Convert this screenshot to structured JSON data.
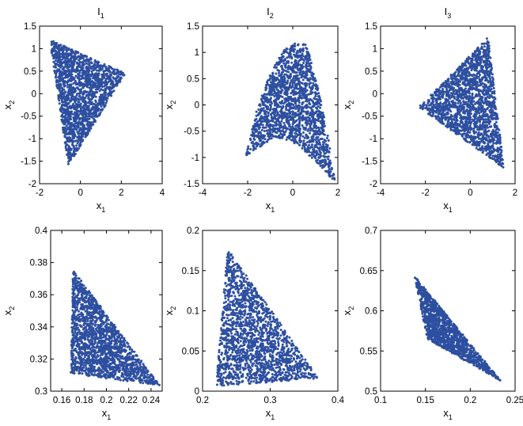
{
  "chart_data": [
    {
      "type": "scatter",
      "title": "I",
      "title_sub": "1",
      "xlabel": "x",
      "xlabel_sub": "1",
      "ylabel": "x",
      "ylabel_sub": "2",
      "xlim": [
        -2,
        4
      ],
      "ylim": [
        -2,
        1.5
      ],
      "xticks": [
        -2,
        0,
        2,
        4
      ],
      "xtick_labels": [
        "-2",
        "0",
        "2",
        "4"
      ],
      "yticks": [
        -2,
        -1.5,
        -1,
        -0.5,
        0,
        0.5,
        1,
        1.5
      ],
      "ytick_labels": [
        "-2",
        "-1.5",
        "-1",
        "-0.5",
        "0",
        "0.5",
        "1",
        "1.5"
      ],
      "region_vertices": [
        [
          -1.5,
          1.2
        ],
        [
          2.2,
          0.45
        ],
        [
          -0.6,
          -1.6
        ]
      ],
      "n_points": 1800
    },
    {
      "type": "scatter",
      "title": "I",
      "title_sub": "2",
      "xlabel": "x",
      "xlabel_sub": "1",
      "ylabel": "x",
      "ylabel_sub": "2",
      "xlim": [
        -4,
        2
      ],
      "ylim": [
        -1.5,
        1.5
      ],
      "xticks": [
        -4,
        -2,
        0,
        2
      ],
      "xtick_labels": [
        "-4",
        "-2",
        "0",
        "2"
      ],
      "yticks": [
        -1.5,
        -1,
        -0.5,
        0,
        0.5,
        1,
        1.5
      ],
      "ytick_labels": [
        "-1.5",
        "-1",
        "-0.5",
        "0",
        "0.5",
        "1",
        "1.5"
      ],
      "region_vertices": [
        [
          -2.1,
          -1.0
        ],
        [
          -1.6,
          -0.1
        ],
        [
          -1.0,
          0.6
        ],
        [
          -0.4,
          1.05
        ],
        [
          0.2,
          1.2
        ],
        [
          0.6,
          1.15
        ],
        [
          0.9,
          0.7
        ],
        [
          1.3,
          0.0
        ],
        [
          1.6,
          -0.7
        ],
        [
          1.9,
          -1.5
        ],
        [
          1.2,
          -1.15
        ],
        [
          0.2,
          -0.75
        ],
        [
          -0.8,
          -0.6
        ]
      ],
      "n_points": 1800
    },
    {
      "type": "scatter",
      "title": "I",
      "title_sub": "3",
      "xlabel": "x",
      "xlabel_sub": "1",
      "ylabel": "x",
      "ylabel_sub": "2",
      "xlim": [
        -4,
        2
      ],
      "ylim": [
        -2,
        1.5
      ],
      "xticks": [
        -4,
        -2,
        0,
        2
      ],
      "xtick_labels": [
        "-4",
        "-2",
        "0",
        "2"
      ],
      "yticks": [
        -2,
        -1.5,
        -1,
        -0.5,
        0,
        0.5,
        1,
        1.5
      ],
      "ytick_labels": [
        "-2",
        "-1.5",
        "-1",
        "-0.5",
        "0",
        "0.5",
        "1",
        "1.5"
      ],
      "region_vertices": [
        [
          -2.3,
          -0.3
        ],
        [
          0.8,
          1.25
        ],
        [
          1.5,
          -1.65
        ]
      ],
      "n_points": 1800
    },
    {
      "type": "scatter",
      "title": "",
      "title_sub": "",
      "xlabel": "x",
      "xlabel_sub": "1",
      "ylabel": "x",
      "ylabel_sub": "2",
      "xlim": [
        0.15,
        0.25
      ],
      "ylim": [
        0.3,
        0.4
      ],
      "xticks": [
        0.16,
        0.18,
        0.2,
        0.22,
        0.24
      ],
      "xtick_labels": [
        "0.16",
        "0.18",
        "0.2",
        "0.22",
        "0.24"
      ],
      "yticks": [
        0.3,
        0.32,
        0.34,
        0.36,
        0.38,
        0.4
      ],
      "ytick_labels": [
        "0.3",
        "0.32",
        "0.34",
        "0.36",
        "0.38",
        "0.4"
      ],
      "region_vertices": [
        [
          0.17,
          0.3755
        ],
        [
          0.168,
          0.311
        ],
        [
          0.248,
          0.3035
        ]
      ],
      "n_points": 1800
    },
    {
      "type": "scatter",
      "title": "",
      "title_sub": "",
      "xlabel": "x",
      "xlabel_sub": "1",
      "ylabel": "x",
      "ylabel_sub": "2",
      "xlim": [
        0.2,
        0.4
      ],
      "ylim": [
        0,
        0.2
      ],
      "xticks": [
        0.2,
        0.3,
        0.4
      ],
      "xtick_labels": [
        "0.2",
        "0.3",
        "0.4"
      ],
      "yticks": [
        0,
        0.05,
        0.1,
        0.15,
        0.2
      ],
      "ytick_labels": [
        "0",
        "0.05",
        "0.1",
        "0.15",
        "0.2"
      ],
      "region_vertices": [
        [
          0.237,
          0.177
        ],
        [
          0.22,
          0.006
        ],
        [
          0.372,
          0.016
        ]
      ],
      "n_points": 1800
    },
    {
      "type": "scatter",
      "title": "",
      "title_sub": "",
      "xlabel": "x",
      "xlabel_sub": "1",
      "ylabel": "x",
      "ylabel_sub": "2",
      "xlim": [
        0.1,
        0.25
      ],
      "ylim": [
        0.5,
        0.7
      ],
      "xticks": [
        0.1,
        0.15,
        0.2,
        0.25
      ],
      "xtick_labels": [
        "0.1",
        "0.15",
        "0.2",
        "0.25"
      ],
      "yticks": [
        0.5,
        0.55,
        0.6,
        0.65,
        0.7
      ],
      "ytick_labels": [
        "0.5",
        "0.55",
        "0.6",
        "0.65",
        "0.7"
      ],
      "region_vertices": [
        [
          0.138,
          0.643
        ],
        [
          0.152,
          0.565
        ],
        [
          0.234,
          0.513
        ]
      ],
      "n_points": 1800
    }
  ],
  "colors": {
    "marker": "#2d4fa0",
    "axes": "#000000",
    "background": "#ffffff"
  }
}
